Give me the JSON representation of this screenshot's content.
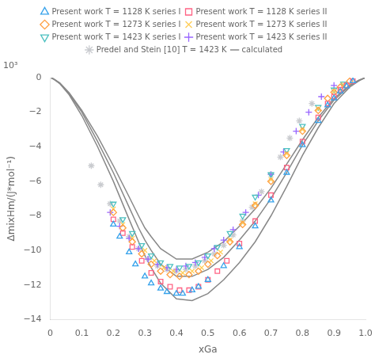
{
  "chart_data": {
    "type": "scatter",
    "xlabel": "xGa",
    "ylabel": "ΔmixHm/(J*mol⁻¹)",
    "annotations": [
      "10³"
    ],
    "xlim": [
      0.0,
      1.0
    ],
    "ylim": [
      -14,
      0
    ],
    "xticks": [
      0,
      0.1,
      0.2,
      0.3,
      0.4,
      0.5,
      0.6,
      0.7,
      0.8,
      0.9,
      {
        "value": 1.0,
        "label": "1.0"
      }
    ],
    "yticks": [
      0,
      {
        "value": -2,
        "label": "−2"
      },
      {
        "value": -4,
        "label": "−4"
      },
      {
        "value": -6,
        "label": "−6"
      },
      {
        "value": -8,
        "label": "−8"
      },
      {
        "value": -10,
        "label": "−10"
      },
      {
        "value": -12,
        "label": "−12"
      },
      {
        "value": -14,
        "label": "−14"
      }
    ],
    "grid": false,
    "legend": "top",
    "series": [
      {
        "name": "Present work T = 1128 K series I",
        "marker": "triangle",
        "x": [
          0.2,
          0.22,
          0.25,
          0.27,
          0.3,
          0.32,
          0.35,
          0.37,
          0.4,
          0.42,
          0.45,
          0.47,
          0.5,
          0.55,
          0.6,
          0.65,
          0.7,
          0.75,
          0.8,
          0.85,
          0.88,
          0.9,
          0.92,
          0.94,
          0.96
        ],
        "values": [
          -8.5,
          -9.2,
          -10.1,
          -10.8,
          -11.5,
          -11.9,
          -12.2,
          -12.4,
          -12.5,
          -12.5,
          -12.3,
          -12.1,
          -11.7,
          -10.9,
          -9.8,
          -8.6,
          -7.1,
          -5.5,
          -3.9,
          -2.5,
          -1.6,
          -1.2,
          -0.8,
          -0.5,
          -0.2
        ]
      },
      {
        "name": "Present work T = 1128 K series II",
        "marker": "square",
        "x": [
          0.2,
          0.23,
          0.26,
          0.29,
          0.32,
          0.35,
          0.38,
          0.41,
          0.44,
          0.47,
          0.5,
          0.53,
          0.56,
          0.6,
          0.65,
          0.7,
          0.75,
          0.8,
          0.85,
          0.88,
          0.9,
          0.92,
          0.94,
          0.96
        ],
        "values": [
          -8.2,
          -9.0,
          -9.8,
          -10.6,
          -11.3,
          -11.8,
          -12.1,
          -12.3,
          -12.3,
          -12.1,
          -11.7,
          -11.2,
          -10.6,
          -9.6,
          -8.3,
          -6.8,
          -5.2,
          -3.7,
          -2.3,
          -1.5,
          -1.1,
          -0.7,
          -0.45,
          -0.2
        ]
      },
      {
        "name": "Present work T = 1273 K series I",
        "marker": "diamond",
        "x": [
          0.2,
          0.23,
          0.26,
          0.29,
          0.32,
          0.35,
          0.38,
          0.41,
          0.44,
          0.47,
          0.5,
          0.53,
          0.57,
          0.61,
          0.65,
          0.7,
          0.75,
          0.8,
          0.85,
          0.88,
          0.9,
          0.92,
          0.95
        ],
        "values": [
          -7.8,
          -8.7,
          -9.5,
          -10.2,
          -10.8,
          -11.2,
          -11.4,
          -11.5,
          -11.4,
          -11.2,
          -10.8,
          -10.3,
          -9.5,
          -8.5,
          -7.4,
          -6.0,
          -4.5,
          -3.1,
          -1.9,
          -1.2,
          -0.85,
          -0.55,
          -0.2
        ]
      },
      {
        "name": "Present work T = 1273 K series II",
        "marker": "x",
        "x": [
          0.2,
          0.23,
          0.26,
          0.3,
          0.33,
          0.36,
          0.39,
          0.42,
          0.45,
          0.48,
          0.51,
          0.54,
          0.57,
          0.61,
          0.65,
          0.7,
          0.75,
          0.8,
          0.85,
          0.9,
          0.93
        ],
        "values": [
          -7.6,
          -8.5,
          -9.3,
          -10.0,
          -10.6,
          -11.0,
          -11.2,
          -11.3,
          -11.2,
          -11.0,
          -10.6,
          -10.1,
          -9.4,
          -8.4,
          -7.3,
          -5.9,
          -4.4,
          -3.0,
          -1.8,
          -0.8,
          -0.4
        ]
      },
      {
        "name": "Present work T = 1423 K series I",
        "marker": "triangle-down",
        "x": [
          0.2,
          0.23,
          0.26,
          0.29,
          0.32,
          0.35,
          0.38,
          0.41,
          0.44,
          0.47,
          0.5,
          0.53,
          0.57,
          0.61,
          0.65,
          0.7,
          0.75,
          0.8,
          0.85,
          0.9,
          0.93
        ],
        "values": [
          -7.3,
          -8.2,
          -9.0,
          -9.7,
          -10.3,
          -10.7,
          -10.9,
          -11.0,
          -10.9,
          -10.7,
          -10.3,
          -9.8,
          -9.0,
          -8.0,
          -6.9,
          -5.6,
          -4.2,
          -2.8,
          -1.7,
          -0.7,
          -0.35
        ]
      },
      {
        "name": "Present work T = 1423 K series II",
        "marker": "plus",
        "x": [
          0.19,
          0.22,
          0.25,
          0.28,
          0.31,
          0.34,
          0.37,
          0.4,
          0.43,
          0.46,
          0.49,
          0.52,
          0.55,
          0.58,
          0.62,
          0.66,
          0.7,
          0.74,
          0.78,
          0.82,
          0.86,
          0.9
        ],
        "values": [
          -7.8,
          -8.6,
          -9.3,
          -9.9,
          -10.5,
          -10.8,
          -11.0,
          -11.1,
          -10.9,
          -10.7,
          -10.4,
          -9.9,
          -9.4,
          -8.8,
          -7.8,
          -6.8,
          -5.6,
          -4.3,
          -3.1,
          -2.0,
          -1.1,
          -0.45
        ]
      },
      {
        "name": "Predel and Stein [10] T = 1423 K",
        "marker": "star",
        "x": [
          0.13,
          0.16,
          0.19,
          0.22,
          0.25,
          0.28,
          0.31,
          0.34,
          0.37,
          0.4,
          0.43,
          0.46,
          0.49,
          0.52,
          0.55,
          0.58,
          0.61,
          0.64,
          0.67,
          0.7,
          0.73,
          0.76,
          0.79,
          0.83
        ],
        "values": [
          -5.1,
          -6.2,
          -7.3,
          -8.3,
          -9.2,
          -9.9,
          -10.5,
          -10.9,
          -11.1,
          -11.2,
          -11.1,
          -10.9,
          -10.6,
          -10.2,
          -9.7,
          -9.1,
          -8.3,
          -7.5,
          -6.6,
          -5.6,
          -4.6,
          -3.5,
          -2.5,
          -1.5
        ]
      },
      {
        "name": "calculated",
        "type": "line",
        "color": "#888888",
        "x": [
          0.003,
          0.01,
          0.03,
          0.06,
          0.1,
          0.15,
          0.2,
          0.25,
          0.28,
          0.3,
          0.32,
          0.35,
          0.4,
          0.45,
          0.5,
          0.55,
          0.6,
          0.65,
          0.7,
          0.75,
          0.8,
          0.85,
          0.9,
          0.95,
          0.98,
          0.997
        ],
        "values": [
          -0.02,
          -0.08,
          -0.35,
          -1.0,
          -2.2,
          -4.0,
          -6.0,
          -8.2,
          -9.5,
          -10.3,
          -11.0,
          -11.9,
          -12.8,
          -12.9,
          -12.5,
          -11.7,
          -10.7,
          -9.5,
          -8.0,
          -6.3,
          -4.5,
          -2.9,
          -1.5,
          -0.55,
          -0.18,
          -0.02
        ]
      },
      {
        "name": "calculated",
        "type": "line",
        "color": "#888888",
        "x": [
          0.003,
          0.01,
          0.03,
          0.06,
          0.1,
          0.15,
          0.2,
          0.25,
          0.28,
          0.3,
          0.32,
          0.35,
          0.4,
          0.45,
          0.5,
          0.55,
          0.6,
          0.65,
          0.7,
          0.75,
          0.8,
          0.85,
          0.9,
          0.95,
          0.98,
          0.997
        ],
        "values": [
          -0.02,
          -0.08,
          -0.33,
          -0.95,
          -2.0,
          -3.7,
          -5.5,
          -7.5,
          -8.7,
          -9.4,
          -10.0,
          -10.8,
          -11.5,
          -11.5,
          -11.1,
          -10.4,
          -9.4,
          -8.3,
          -7.0,
          -5.5,
          -3.9,
          -2.5,
          -1.3,
          -0.48,
          -0.16,
          -0.02
        ]
      },
      {
        "name": "calculated",
        "type": "line",
        "color": "#888888",
        "x": [
          0.003,
          0.01,
          0.03,
          0.06,
          0.1,
          0.15,
          0.2,
          0.25,
          0.28,
          0.3,
          0.32,
          0.35,
          0.4,
          0.45,
          0.5,
          0.55,
          0.6,
          0.65,
          0.7,
          0.75,
          0.8,
          0.85,
          0.9,
          0.95,
          0.98,
          0.997
        ],
        "values": [
          -0.02,
          -0.07,
          -0.3,
          -0.88,
          -1.9,
          -3.4,
          -5.1,
          -6.9,
          -8.0,
          -8.7,
          -9.2,
          -9.9,
          -10.5,
          -10.5,
          -10.1,
          -9.5,
          -8.6,
          -7.6,
          -6.4,
          -5.0,
          -3.6,
          -2.3,
          -1.2,
          -0.43,
          -0.14,
          -0.02
        ]
      }
    ]
  }
}
